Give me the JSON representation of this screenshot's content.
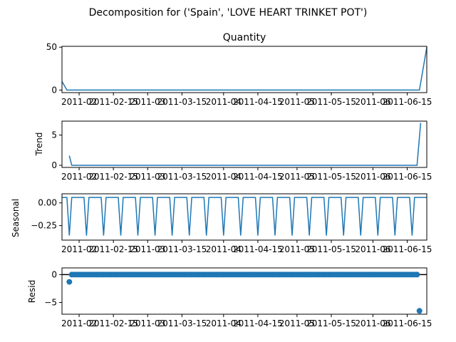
{
  "figure": {
    "suptitle": "Decomposition for ('Spain', 'LOVE HEART TRINKET POT')"
  },
  "colors": {
    "series": "#1f77b4",
    "zero_line": "#000000"
  },
  "chart_data": [
    {
      "type": "line",
      "title": "Quantity",
      "ylabel": "",
      "ylim": [
        -3,
        51
      ],
      "yticks": [
        0,
        50
      ],
      "x_ticks": [
        "2011-02",
        "2011-02-15",
        "2011-03",
        "2011-03-15",
        "2011-04",
        "2011-04-15",
        "2011-05",
        "2011-05-15",
        "2011-06",
        "2011-06-15"
      ],
      "x_range_days": [
        0,
        149
      ],
      "series": [
        {
          "points": [
            [
              0,
              10
            ],
            [
              2,
              0
            ],
            [
              146,
              0
            ],
            [
              149,
              50
            ]
          ]
        }
      ]
    },
    {
      "type": "line",
      "title": "",
      "ylabel": "Trend",
      "ylim": [
        -0.35,
        7.3
      ],
      "yticks": [
        0,
        5
      ],
      "x_ticks": [
        "2011-02",
        "2011-02-15",
        "2011-03",
        "2011-03-15",
        "2011-04",
        "2011-04-15",
        "2011-05",
        "2011-05-15",
        "2011-06",
        "2011-06-15"
      ],
      "series": [
        {
          "points": [
            [
              3,
              1.6
            ],
            [
              4,
              0
            ],
            [
              145,
              0
            ],
            [
              146.5,
              7
            ]
          ]
        }
      ]
    },
    {
      "type": "line",
      "title": "",
      "ylabel": "Seasonal",
      "ylim": [
        -0.41,
        0.1
      ],
      "yticks": [
        0.0,
        -0.25
      ],
      "ytick_labels": [
        "0.00",
        "−0.25"
      ],
      "x_ticks": [
        "2011-02",
        "2011-02-15",
        "2011-03",
        "2011-03-15",
        "2011-04",
        "2011-04-15",
        "2011-05",
        "2011-05-15",
        "2011-06",
        "2011-06-15"
      ],
      "seasonal": {
        "period_days": 7,
        "high": 0.06,
        "low": -0.36,
        "first_trough_day": 3
      }
    },
    {
      "type": "scatter",
      "title": "",
      "ylabel": "Resid",
      "ylim": [
        -7.1,
        1.2
      ],
      "yticks": [
        0,
        -5
      ],
      "ytick_labels": [
        "0",
        "−5"
      ],
      "x_ticks": [
        "2011-02",
        "2011-02-15",
        "2011-03",
        "2011-03-15",
        "2011-04",
        "2011-04-15",
        "2011-05",
        "2011-05-15",
        "2011-06",
        "2011-06-15"
      ],
      "zero_line": true,
      "residuals": {
        "first_day": 3,
        "last_day": 146,
        "first_value": -1.3,
        "last_value": -6.5,
        "typical_value": 0.0
      }
    }
  ]
}
